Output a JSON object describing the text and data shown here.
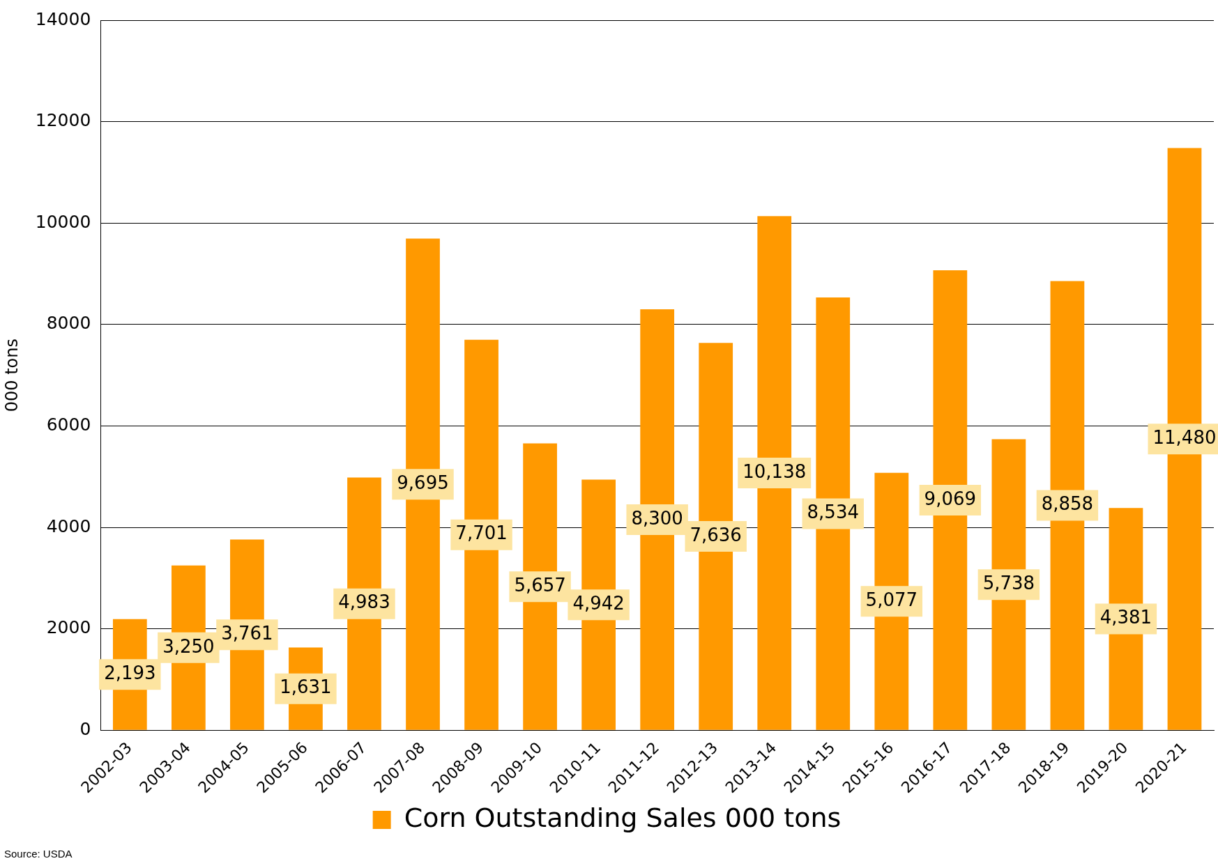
{
  "chart_data": {
    "type": "bar",
    "ylabel": "000 tons",
    "categories": [
      "2002-03",
      "2003-04",
      "2004-05",
      "2005-06",
      "2006-07",
      "2007-08",
      "2008-09",
      "2009-10",
      "2010-11",
      "2011-12",
      "2012-13",
      "2013-14",
      "2014-15",
      "2015-16",
      "2016-17",
      "2017-18",
      "2018-19",
      "2019-20",
      "2020-21"
    ],
    "series": [
      {
        "name": "Corn Outstanding Sales 000 tons",
        "color": "#ff9900",
        "values": [
          2193,
          3250,
          3761,
          1631,
          4983,
          9695,
          7701,
          5657,
          4942,
          8300,
          7636,
          10138,
          8534,
          5077,
          9069,
          5738,
          8858,
          4381,
          11480
        ]
      }
    ],
    "value_labels": [
      "2,193",
      "3,250",
      "3,761",
      "1,631",
      "4,983",
      "9,695",
      "7,701",
      "5,657",
      "4,942",
      "8,300",
      "7,636",
      "10,138",
      "8,534",
      "5,077",
      "9,069",
      "5,738",
      "8,858",
      "4,381",
      "11,480"
    ],
    "ylim": [
      0,
      14000
    ],
    "yticks": [
      0,
      2000,
      4000,
      6000,
      8000,
      10000,
      12000,
      14000
    ],
    "grid": "y",
    "legend": "bottom",
    "annotations": [
      "Source: USDA"
    ]
  }
}
